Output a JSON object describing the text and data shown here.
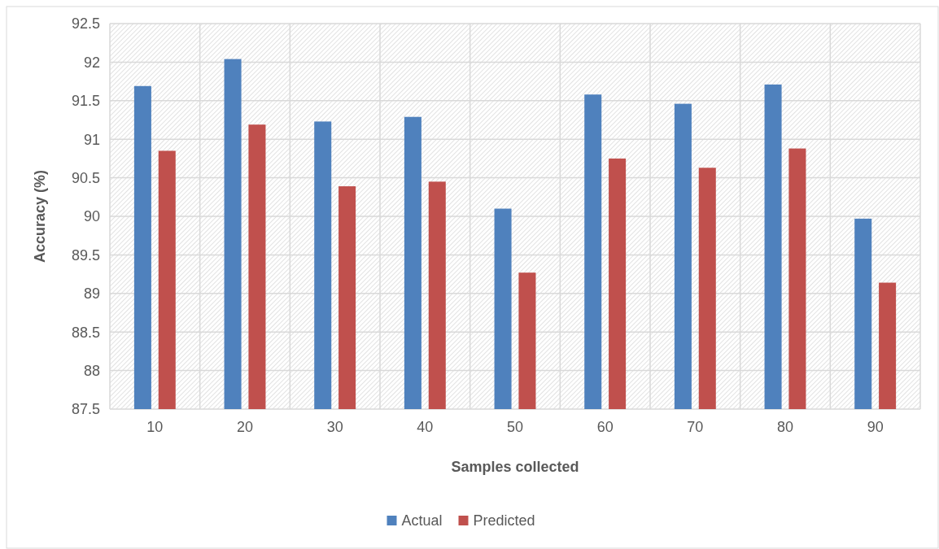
{
  "chart_data": {
    "type": "bar",
    "xlabel": "Samples collected",
    "ylabel": "Accuracy (%)",
    "categories": [
      "10",
      "20",
      "30",
      "40",
      "50",
      "60",
      "70",
      "80",
      "90"
    ],
    "series": [
      {
        "name": "Actual",
        "color": "#4f81bd",
        "values": [
          91.69,
          92.04,
          91.23,
          91.29,
          90.1,
          91.58,
          91.46,
          91.71,
          89.97
        ]
      },
      {
        "name": "Predicted",
        "color": "#c0504d",
        "values": [
          90.85,
          91.19,
          90.39,
          90.45,
          89.27,
          90.75,
          90.63,
          90.88,
          89.14
        ]
      }
    ],
    "ylim": [
      87.5,
      92.5
    ],
    "yticks": [
      87.5,
      88,
      88.5,
      89,
      89.5,
      90,
      90.5,
      91,
      91.5,
      92,
      92.5
    ],
    "grid": true,
    "legend": "bottom"
  }
}
